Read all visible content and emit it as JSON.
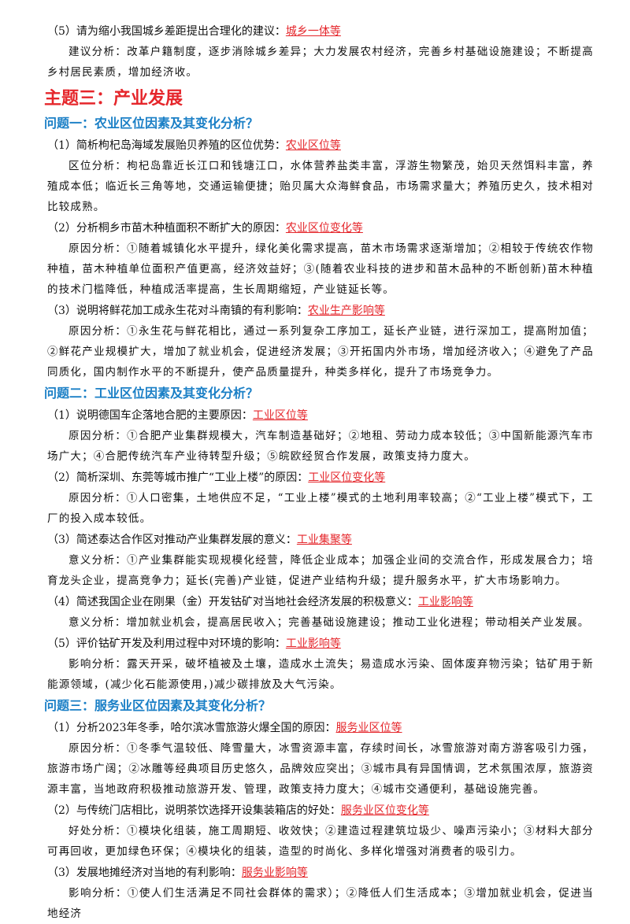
{
  "intro": {
    "question": "（5）请为缩小我国城乡差距提出合理化的建议：",
    "tag": "城乡一体等",
    "analysis": "建议分析：改革户籍制度，逐步消除城乡差异；大力发展农村经济，完善乡村基础设施建设；不断提高乡村居民素质，增加经济收。"
  },
  "topic": {
    "title": "主题三：产业发展",
    "problems": [
      {
        "title": "问题一：农业区位因素及其变化分析？",
        "items": [
          {
            "question": "（1）简析枸杞岛海域发展贻贝养殖的区位优势：",
            "tag": "农业区位等",
            "analysis": "区位分析：枸杞岛靠近长江口和钱塘江口，水体营养盐类丰富，浮游生物繁茂，始贝天然饵料丰富，养殖成本低；临近长三角等地，交通运输便捷；贻贝属大众海鲜食品，市场需求量大；养殖历史久，技术相对比较成熟。"
          },
          {
            "question": "（2）分析桐乡市苗木种植面积不断扩大的原因：",
            "tag": "农业区位变化等",
            "analysis": "原因分析：①随着城镇化水平提升，绿化美化需求提高，苗木市场需求逐渐增加；②相较于传统农作物种植，苗木种植单位面积产值更高，经济效益好；③(随着农业科技的进步和苗木品种的不断创新)苗木种植的技术门槛降低，种植成活率提高，生长周期缩短，产业链延长等。"
          },
          {
            "question": "（3）说明将鲜花加工成永生花对斗南镇的有利影响：",
            "tag": "农业生产影响等",
            "analysis": "原因分析：①永生花与鲜花相比，通过一系列复杂工序加工，延长产业链，进行深加工，提高附加值；②鲜花产业规模扩大，增加了就业机会，促进经济发展；③开拓国内外市场，增加经济收入；④避免了产品同质化，国内制作水平的不断提升，使产品质量提升，种类多样化，提升了市场竞争力。"
          }
        ]
      },
      {
        "title": "问题二：工业区位因素及其变化分析？",
        "items": [
          {
            "question": "（1）说明德国车企落地合肥的主要原因：",
            "tag": "工业区位等",
            "analysis": "原因分析：①合肥产业集群规模大，汽车制造基础好；②地租、劳动力成本较低；③中国新能源汽车市场广大；④合肥传统汽车产业待转型升级；⑤皖欧经贸合作发展，政策支持力度大。"
          },
          {
            "question": "（2）简析深圳、东莞等城市推广“工业上楼”的原因：",
            "tag": "工业区位变化等",
            "analysis": "原因分析：①人口密集，土地供应不足，“工业上楼”模式的土地利用率较高；②“工业上楼”模式下，工厂的投入成本较低。"
          },
          {
            "question": "（3）简述泰达合作区对推动产业集群发展的意义：",
            "tag": "工业集聚等",
            "analysis": "意义分析：①产业集群能实现规模化经营，降低企业成本；加强企业间的交流合作，形成发展合力；培育龙头企业，提高竞争力；延长(完善)产业链，促进产业结构升级；提升服务水平，扩大市场影响力。"
          },
          {
            "question": "（4）简述我国企业在刚果（金）开发钴矿对当地社会经济发展的积极意义：",
            "tag": "工业影响等",
            "analysis": "意义分析：增加就业机会，提高居民收入；完善基础设施建设；推动工业化进程；带动相关产业发展。"
          },
          {
            "question": "（5）评价钴矿开发及利用过程中对环境的影响：",
            "tag": "工业影响等",
            "analysis": "影响分析：露天开采，破坏植被及土壤，造成水土流失；易造成水污染、固体废弃物污染；钴矿用于新能源领域，(减少化石能源使用，)减少碳排放及大气污染。"
          }
        ]
      },
      {
        "title": "问题三：服务业区位因素及其变化分析？",
        "items": [
          {
            "question": "（1）分析2023年冬季，哈尔滨冰雪旅游火爆全国的原因：",
            "tag": "服务业区位等",
            "analysis": "原因分析：①冬季气温较低、降雪量大，冰雪资源丰富，存续时间长，冰雪旅游对南方游客吸引力强，旅游市场广阔；②冰雕等经典项目历史悠久，品牌效应突出；③城市具有异国情调，艺术氛围浓厚，旅游资源丰富，当地政府积极推动旅游开发、管理，政策支持力度大；④城市交通便利，基础设施完善。"
          },
          {
            "question": "（2）与传统门店相比，说明茶饮选择开设集装箱店的好处：",
            "tag": "服务业区位变化等",
            "analysis": "好处分析：①模块化组装，施工周期短、收效快；②建造过程建筑垃圾少、噪声污染小；③材料大部分可再回收，更加绿色环保；④模块化的组装，造型的时尚化、多样化增强对消费者的吸引力。"
          },
          {
            "question": "（3）发展地摊经济对当地的有利影响：",
            "tag": "服务业影响等",
            "analysis": "影响分析：①使人们生活满足不同社会群体的需求）；②降低人们生活成本；③增加就业机会，促进当地经济"
          }
        ]
      }
    ]
  }
}
